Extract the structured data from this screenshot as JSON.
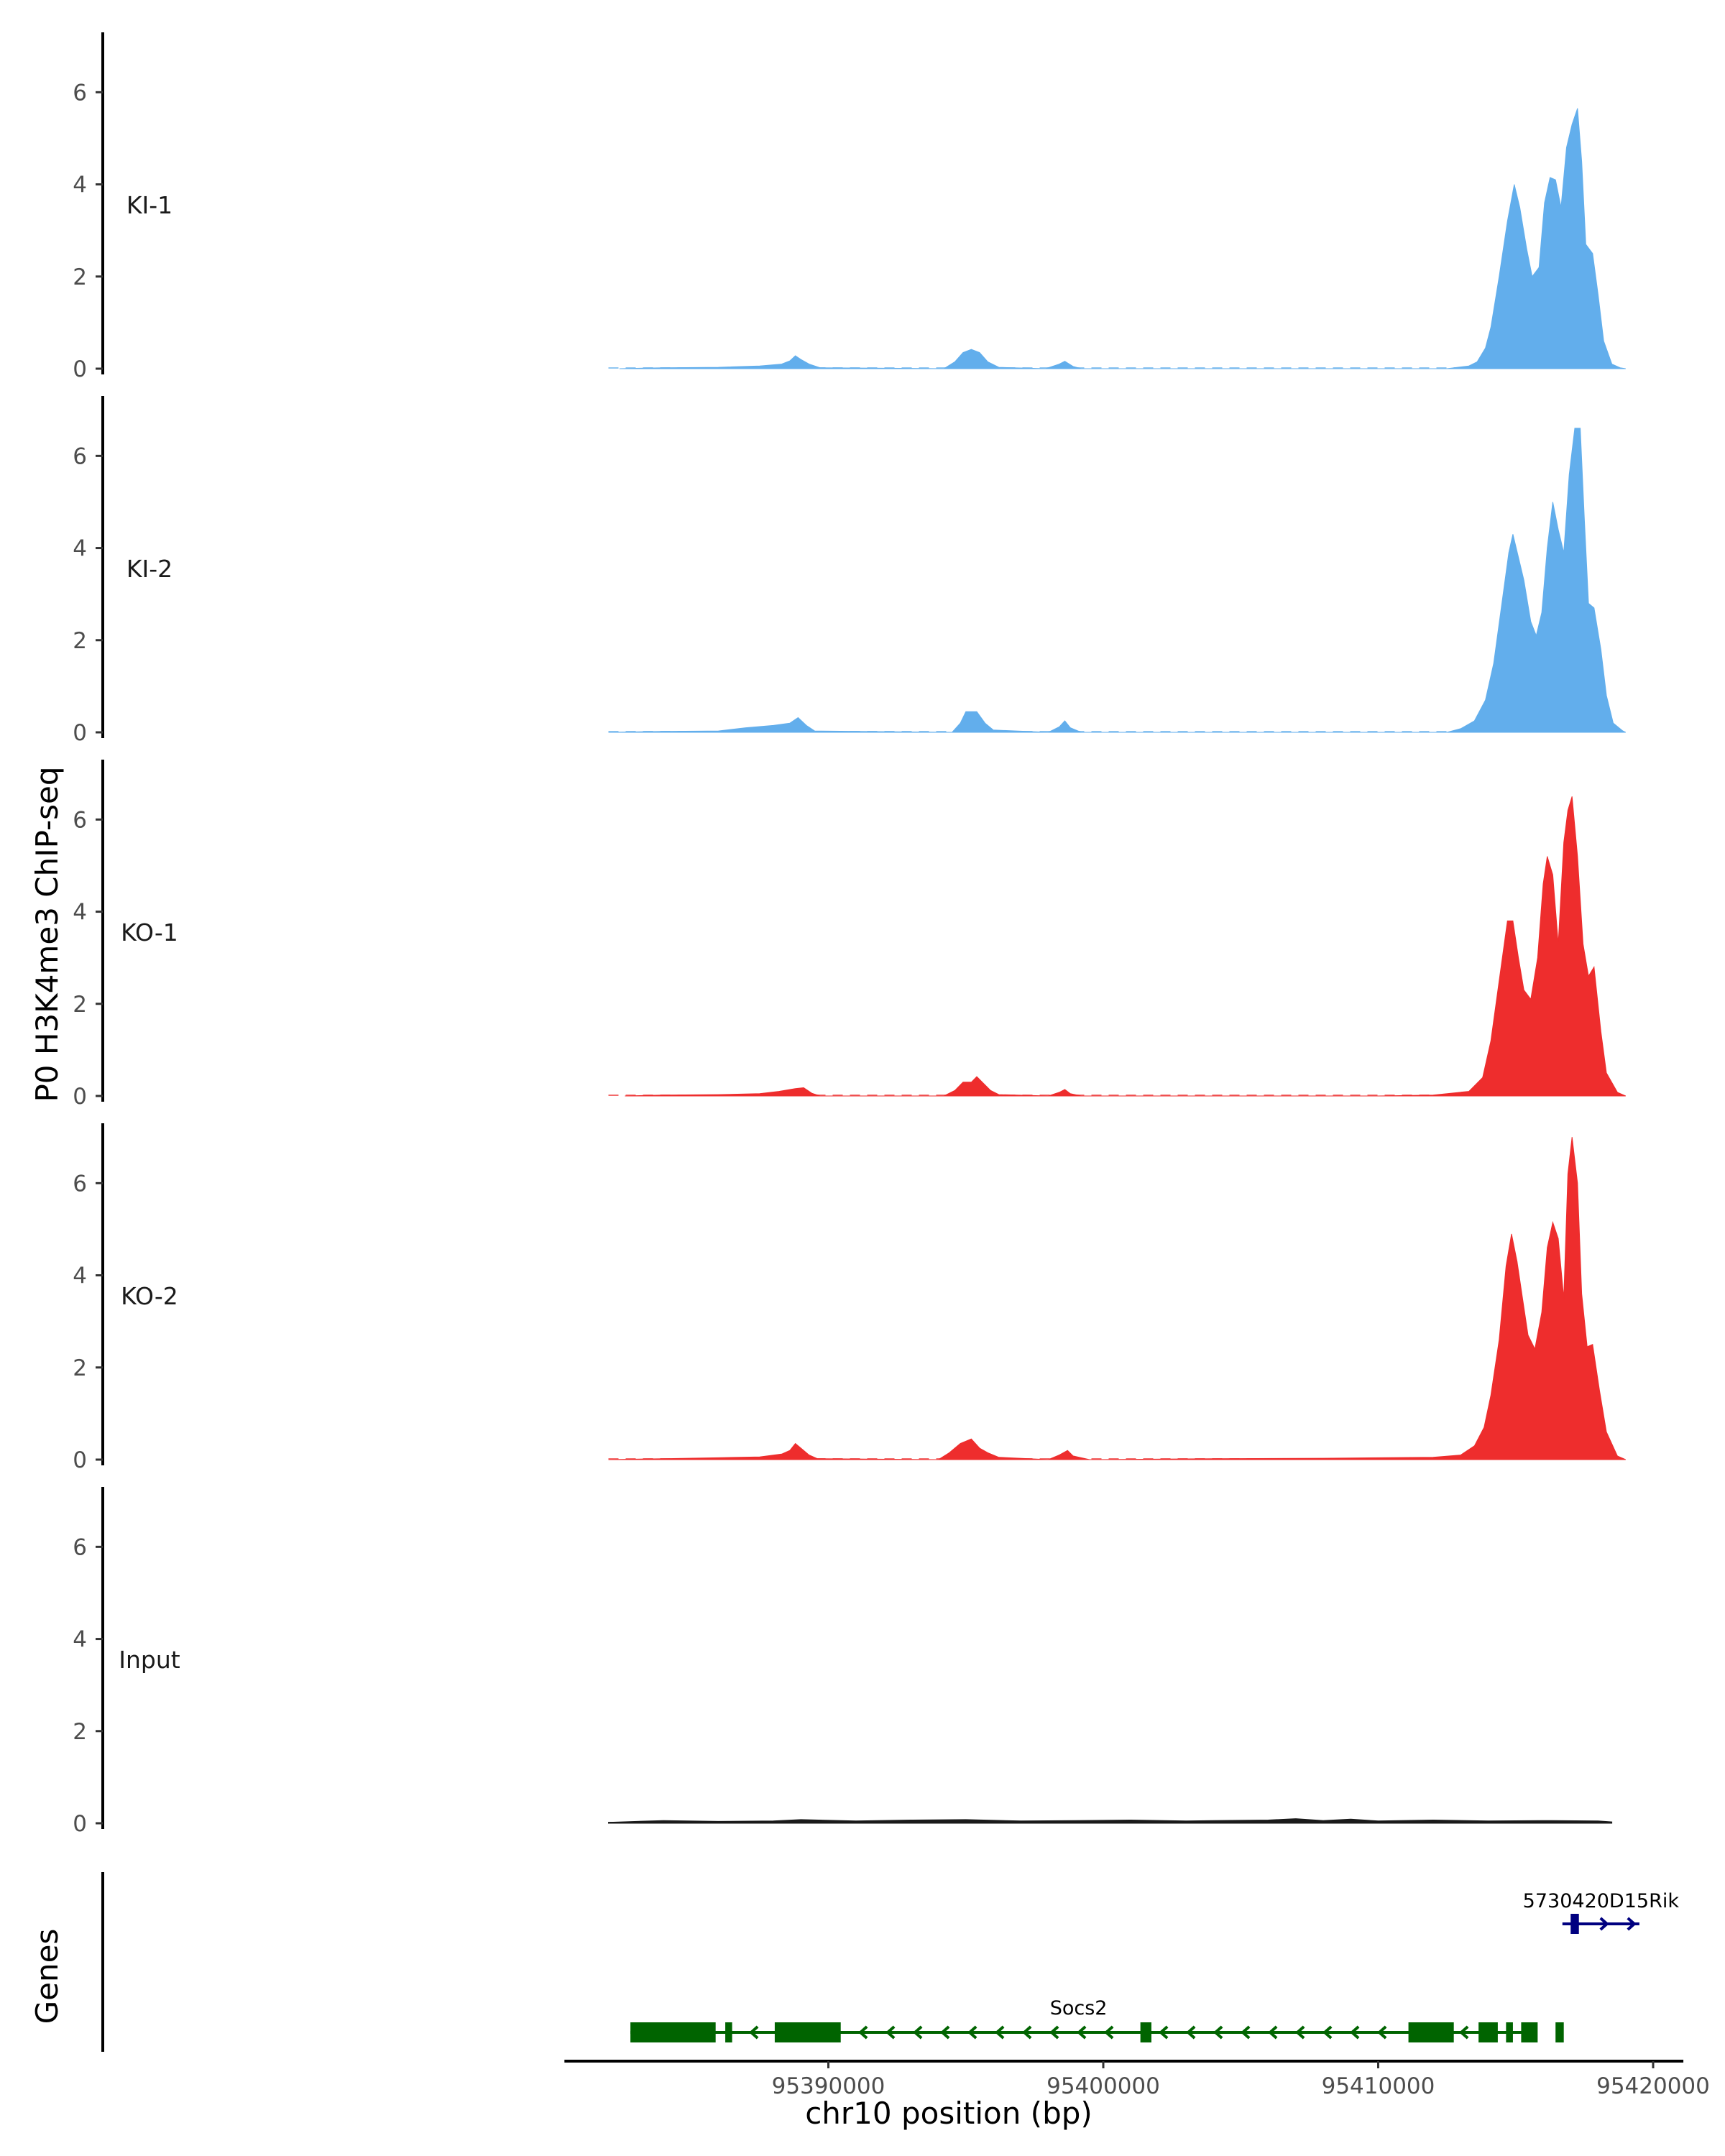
{
  "chart_data": {
    "type": "area",
    "ylabel": "P0 H3K4me3 ChIP-seq",
    "xlabel": "chr10 position (bp)",
    "genes_label": "Genes",
    "xlim": [
      95380400,
      95421100
    ],
    "ylim": [
      0,
      7.3
    ],
    "yticks": [
      0,
      2,
      4,
      6
    ],
    "xticks": [
      95390000,
      95400000,
      95410000,
      95420000
    ],
    "xtick_labels": [
      "95390000",
      "95400000",
      "95410000",
      "95420000"
    ],
    "track_range": [
      95382000,
      95418500
    ],
    "tracks": [
      {
        "name": "KI-1",
        "color": "#62AEEC",
        "points": [
          [
            95382400,
            0
          ],
          [
            95384000,
            0.02
          ],
          [
            95386000,
            0.03
          ],
          [
            95387500,
            0.06
          ],
          [
            95388300,
            0.1
          ],
          [
            95388600,
            0.17
          ],
          [
            95388800,
            0.28
          ],
          [
            95389000,
            0.2
          ],
          [
            95389300,
            0.1
          ],
          [
            95389700,
            0.02
          ],
          [
            95394200,
            0
          ],
          [
            95394600,
            0.15
          ],
          [
            95394900,
            0.35
          ],
          [
            95395200,
            0.42
          ],
          [
            95395500,
            0.35
          ],
          [
            95395800,
            0.15
          ],
          [
            95396200,
            0.03
          ],
          [
            95397900,
            0
          ],
          [
            95398400,
            0.1
          ],
          [
            95398600,
            0.16
          ],
          [
            95398900,
            0.05
          ],
          [
            95399200,
            0
          ],
          [
            95412500,
            0
          ],
          [
            95413300,
            0.06
          ],
          [
            95413600,
            0.15
          ],
          [
            95413900,
            0.45
          ],
          [
            95414100,
            0.9
          ],
          [
            95414400,
            2.0
          ],
          [
            95414700,
            3.2
          ],
          [
            95414950,
            4.0
          ],
          [
            95415150,
            3.5
          ],
          [
            95415400,
            2.6
          ],
          [
            95415600,
            2.0
          ],
          [
            95415850,
            2.2
          ],
          [
            95416050,
            3.6
          ],
          [
            95416250,
            4.15
          ],
          [
            95416450,
            4.1
          ],
          [
            95416650,
            3.5
          ],
          [
            95416850,
            4.8
          ],
          [
            95417050,
            5.3
          ],
          [
            95417250,
            5.65
          ],
          [
            95417400,
            4.5
          ],
          [
            95417550,
            2.7
          ],
          [
            95417800,
            2.5
          ],
          [
            95418000,
            1.6
          ],
          [
            95418200,
            0.6
          ],
          [
            95418500,
            0.1
          ],
          [
            95418800,
            0.02
          ],
          [
            95419000,
            0
          ]
        ]
      },
      {
        "name": "KI-2",
        "color": "#62AEEC",
        "points": [
          [
            95382000,
            0
          ],
          [
            95384000,
            0.02
          ],
          [
            95386000,
            0.03
          ],
          [
            95387000,
            0.1
          ],
          [
            95388000,
            0.15
          ],
          [
            95388600,
            0.2
          ],
          [
            95388900,
            0.32
          ],
          [
            95389200,
            0.15
          ],
          [
            95389500,
            0.03
          ],
          [
            95394500,
            0
          ],
          [
            95394800,
            0.2
          ],
          [
            95395000,
            0.45
          ],
          [
            95395400,
            0.45
          ],
          [
            95395700,
            0.2
          ],
          [
            95396000,
            0.05
          ],
          [
            95398000,
            0
          ],
          [
            95398400,
            0.12
          ],
          [
            95398600,
            0.25
          ],
          [
            95398800,
            0.1
          ],
          [
            95399200,
            0
          ],
          [
            95412500,
            0
          ],
          [
            95413000,
            0.08
          ],
          [
            95413500,
            0.25
          ],
          [
            95413900,
            0.7
          ],
          [
            95414200,
            1.5
          ],
          [
            95414500,
            2.8
          ],
          [
            95414750,
            3.9
          ],
          [
            95414900,
            4.3
          ],
          [
            95415100,
            3.8
          ],
          [
            95415300,
            3.3
          ],
          [
            95415550,
            2.4
          ],
          [
            95415750,
            2.1
          ],
          [
            95415950,
            2.6
          ],
          [
            95416150,
            4.0
          ],
          [
            95416350,
            5.0
          ],
          [
            95416550,
            4.4
          ],
          [
            95416750,
            3.9
          ],
          [
            95416950,
            5.6
          ],
          [
            95417150,
            6.6
          ],
          [
            95417350,
            6.6
          ],
          [
            95417500,
            4.6
          ],
          [
            95417650,
            2.8
          ],
          [
            95417850,
            2.7
          ],
          [
            95418100,
            1.8
          ],
          [
            95418300,
            0.8
          ],
          [
            95418550,
            0.2
          ],
          [
            95418900,
            0.03
          ],
          [
            95419000,
            0
          ]
        ]
      },
      {
        "name": "KO-1",
        "color": "#EE2D2D",
        "points": [
          [
            95382600,
            0
          ],
          [
            95384000,
            0.02
          ],
          [
            95386000,
            0.03
          ],
          [
            95387500,
            0.05
          ],
          [
            95388200,
            0.1
          ],
          [
            95388800,
            0.16
          ],
          [
            95389100,
            0.18
          ],
          [
            95389400,
            0.06
          ],
          [
            95389700,
            0
          ],
          [
            95394200,
            0
          ],
          [
            95394600,
            0.12
          ],
          [
            95394900,
            0.3
          ],
          [
            95395200,
            0.3
          ],
          [
            95395400,
            0.42
          ],
          [
            95395600,
            0.3
          ],
          [
            95395900,
            0.12
          ],
          [
            95396200,
            0.03
          ],
          [
            95398000,
            0
          ],
          [
            95398400,
            0.08
          ],
          [
            95398600,
            0.14
          ],
          [
            95398800,
            0.05
          ],
          [
            95399200,
            0
          ],
          [
            95410000,
            0
          ],
          [
            95412000,
            0.02
          ],
          [
            95413300,
            0.1
          ],
          [
            95413800,
            0.4
          ],
          [
            95414100,
            1.2
          ],
          [
            95414400,
            2.5
          ],
          [
            95414700,
            3.8
          ],
          [
            95414900,
            3.8
          ],
          [
            95415100,
            3.0
          ],
          [
            95415300,
            2.3
          ],
          [
            95415550,
            2.1
          ],
          [
            95415800,
            3.0
          ],
          [
            95416000,
            4.6
          ],
          [
            95416150,
            5.2
          ],
          [
            95416350,
            4.8
          ],
          [
            95416550,
            3.3
          ],
          [
            95416750,
            5.5
          ],
          [
            95416900,
            6.2
          ],
          [
            95417050,
            6.5
          ],
          [
            95417250,
            5.2
          ],
          [
            95417450,
            3.3
          ],
          [
            95417650,
            2.6
          ],
          [
            95417850,
            2.8
          ],
          [
            95418100,
            1.4
          ],
          [
            95418300,
            0.5
          ],
          [
            95418700,
            0.08
          ],
          [
            95419000,
            0
          ]
        ]
      },
      {
        "name": "KO-2",
        "color": "#EE2D2D",
        "points": [
          [
            95382000,
            0
          ],
          [
            95384000,
            0.02
          ],
          [
            95386000,
            0.04
          ],
          [
            95387500,
            0.06
          ],
          [
            95388300,
            0.12
          ],
          [
            95388600,
            0.2
          ],
          [
            95388800,
            0.35
          ],
          [
            95389000,
            0.25
          ],
          [
            95389300,
            0.1
          ],
          [
            95389600,
            0.02
          ],
          [
            95394000,
            0
          ],
          [
            95394400,
            0.15
          ],
          [
            95394800,
            0.35
          ],
          [
            95395200,
            0.45
          ],
          [
            95395500,
            0.25
          ],
          [
            95395800,
            0.15
          ],
          [
            95396200,
            0.05
          ],
          [
            95398000,
            0
          ],
          [
            95398400,
            0.1
          ],
          [
            95398700,
            0.2
          ],
          [
            95398900,
            0.08
          ],
          [
            95399500,
            0
          ],
          [
            95404000,
            0.02
          ],
          [
            95408000,
            0.03
          ],
          [
            95412000,
            0.05
          ],
          [
            95413000,
            0.1
          ],
          [
            95413500,
            0.3
          ],
          [
            95413850,
            0.7
          ],
          [
            95414100,
            1.4
          ],
          [
            95414400,
            2.6
          ],
          [
            95414650,
            4.2
          ],
          [
            95414850,
            4.9
          ],
          [
            95415050,
            4.3
          ],
          [
            95415250,
            3.5
          ],
          [
            95415450,
            2.7
          ],
          [
            95415700,
            2.4
          ],
          [
            95415950,
            3.2
          ],
          [
            95416150,
            4.6
          ],
          [
            95416350,
            5.15
          ],
          [
            95416550,
            4.8
          ],
          [
            95416750,
            3.5
          ],
          [
            95416900,
            6.2
          ],
          [
            95417050,
            7.0
          ],
          [
            95417250,
            6.0
          ],
          [
            95417400,
            3.6
          ],
          [
            95417600,
            2.45
          ],
          [
            95417800,
            2.5
          ],
          [
            95418050,
            1.5
          ],
          [
            95418300,
            0.6
          ],
          [
            95418700,
            0.08
          ],
          [
            95419000,
            0
          ]
        ]
      },
      {
        "name": "Input",
        "color": "#1a1a1a",
        "points": [
          [
            95382000,
            0.02
          ],
          [
            95384000,
            0.06
          ],
          [
            95386000,
            0.04
          ],
          [
            95388000,
            0.05
          ],
          [
            95389000,
            0.08
          ],
          [
            95391000,
            0.05
          ],
          [
            95393000,
            0.07
          ],
          [
            95395000,
            0.08
          ],
          [
            95397000,
            0.05
          ],
          [
            95399000,
            0.06
          ],
          [
            95401000,
            0.07
          ],
          [
            95403000,
            0.05
          ],
          [
            95404000,
            0.06
          ],
          [
            95406000,
            0.07
          ],
          [
            95407000,
            0.1
          ],
          [
            95408000,
            0.06
          ],
          [
            95409000,
            0.09
          ],
          [
            95410000,
            0.05
          ],
          [
            95412000,
            0.07
          ],
          [
            95414000,
            0.05
          ],
          [
            95416000,
            0.06
          ],
          [
            95418000,
            0.05
          ],
          [
            95418500,
            0.03
          ]
        ]
      }
    ],
    "genes": [
      {
        "name": "Socs2",
        "strand": "-",
        "color": "#006400",
        "start": 95382800,
        "end": 95415400,
        "exons": [
          [
            95382800,
            95385900
          ],
          [
            95386250,
            95386500
          ],
          [
            95388050,
            95390450
          ],
          [
            95401350,
            95401750
          ],
          [
            95411100,
            95412750
          ],
          [
            95413650,
            95414350
          ],
          [
            95414650,
            95414900
          ],
          [
            95415200,
            95415800
          ],
          [
            95416450,
            95416750
          ]
        ]
      },
      {
        "name": "5730420D15Rik",
        "strand": "+",
        "color": "#000080",
        "start": 95416700,
        "end": 95419500,
        "exons": [
          [
            95417000,
            95417300
          ]
        ]
      }
    ]
  }
}
